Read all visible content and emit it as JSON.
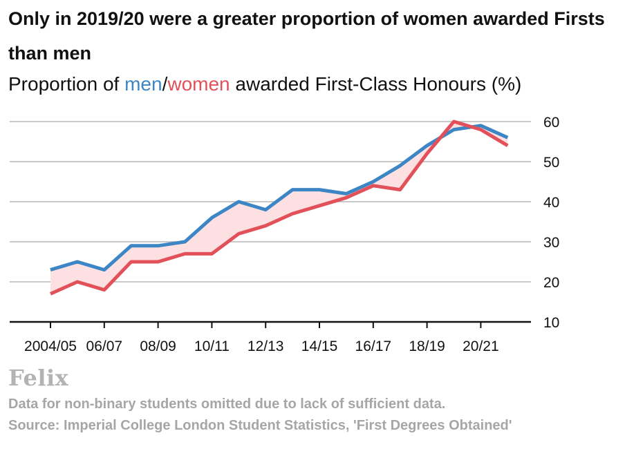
{
  "title": "Only in 2019/20 were a greater proportion of women awarded Firsts than men",
  "subtitle": {
    "prefix": "Proportion of ",
    "men": "men",
    "slash": "/",
    "women": "women",
    "suffix": " awarded First-Class Honours (%)"
  },
  "logo": "Felix",
  "notes": {
    "omitted": "Data for non-binary students omitted due to lack of sufficient data.",
    "source": "Source: Imperial College London Student Statistics, 'First Degrees Obtained'"
  },
  "colors": {
    "men": "#3d86c6",
    "women": "#e2515a",
    "gap_fill": "#fde0e2",
    "grid": "#b5b5b5",
    "axis": "#111111"
  },
  "chart_data": {
    "type": "line",
    "title": "Only in 2019/20 were a greater proportion of women awarded Firsts than men",
    "ylabel": "Proportion awarded First-Class Honours (%)",
    "xlabel": "",
    "ylim": [
      10,
      60
    ],
    "yticks": [
      10,
      20,
      30,
      40,
      50,
      60
    ],
    "grid": true,
    "y_axis_side": "right",
    "x": [
      "2004/05",
      "2005/06",
      "2006/07",
      "2007/08",
      "2008/09",
      "2009/10",
      "2010/11",
      "2011/12",
      "2012/13",
      "2013/14",
      "2014/15",
      "2015/16",
      "2016/17",
      "2017/18",
      "2018/19",
      "2019/20",
      "2020/21",
      "2021/22"
    ],
    "xtick_labels": [
      "2004/05",
      "06/07",
      "08/09",
      "10/11",
      "12/13",
      "14/15",
      "16/17",
      "18/19",
      "20/21"
    ],
    "series": [
      {
        "name": "men",
        "color": "#3d86c6",
        "values": [
          23,
          25,
          23,
          29,
          29,
          30,
          36,
          40,
          38,
          43,
          43,
          42,
          45,
          49,
          54,
          58,
          59,
          56
        ]
      },
      {
        "name": "women",
        "color": "#e2515a",
        "values": [
          17,
          20,
          18,
          25,
          25,
          27,
          27,
          32,
          34,
          37,
          39,
          41,
          44,
          43,
          52,
          60,
          58,
          54
        ]
      }
    ]
  }
}
